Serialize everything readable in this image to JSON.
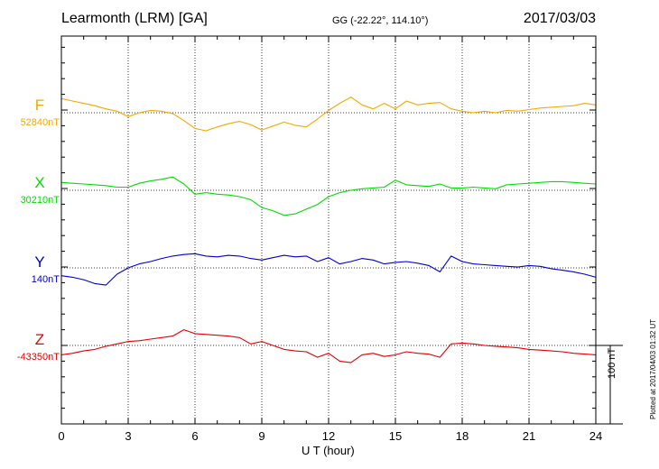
{
  "header": {
    "station": "Learmonth (LRM)  [GA]",
    "coords": "GG (-22.22°, 114.10°)",
    "date": "2017/03/03"
  },
  "footer": {
    "plotted": "Plotted at 2017/04/03 01:32 UT"
  },
  "scale": {
    "label": "100 nT",
    "value_nT": 100
  },
  "colors": {
    "F": "#f5a800",
    "X": "#00dd00",
    "Y": "#0000cc",
    "Z": "#e00000"
  },
  "chart_data": {
    "type": "line",
    "title": "",
    "xlabel": "U T (hour)",
    "xlim": [
      0,
      24
    ],
    "x_ticks": [
      "0",
      "3",
      "6",
      "9",
      "12",
      "15",
      "18",
      "21",
      "24"
    ],
    "x_minor_step": 1,
    "ylabel": "",
    "grid": true,
    "units": "nT",
    "series": [
      {
        "name": "F",
        "baseline": "52840nT",
        "x": [
          0,
          0.5,
          1,
          1.5,
          2,
          2.5,
          3,
          3.5,
          4,
          4.5,
          5,
          5.5,
          6,
          6.5,
          7,
          7.5,
          8,
          8.5,
          9,
          9.5,
          10,
          10.5,
          11,
          11.5,
          12,
          12.5,
          13,
          13.5,
          14,
          14.5,
          15,
          15.5,
          16,
          16.5,
          17,
          17.5,
          18,
          18.5,
          19,
          19.5,
          20,
          20.5,
          21,
          21.5,
          22,
          22.5,
          23,
          23.5,
          24
        ],
        "values": [
          18,
          15,
          12,
          9,
          5,
          2,
          -5,
          0,
          3,
          2,
          -1,
          -10,
          -20,
          -23,
          -18,
          -14,
          -11,
          -15,
          -22,
          -17,
          -12,
          -16,
          -18,
          -8,
          3,
          12,
          20,
          10,
          5,
          12,
          5,
          15,
          10,
          12,
          13,
          5,
          2,
          0,
          2,
          0,
          3,
          2,
          4,
          6,
          7,
          8,
          9,
          12,
          10
        ]
      },
      {
        "name": "X",
        "baseline": "30210nT",
        "x": [
          0,
          0.5,
          1,
          1.5,
          2,
          2.5,
          3,
          3.5,
          4,
          4.5,
          5,
          5.5,
          6,
          6.5,
          7,
          7.5,
          8,
          8.5,
          9,
          9.5,
          10,
          10.5,
          11,
          11.5,
          12,
          12.5,
          13,
          13.5,
          14,
          14.5,
          15,
          15.5,
          16,
          16.5,
          17,
          17.5,
          18,
          18.5,
          19,
          19.5,
          20,
          20.5,
          21,
          21.5,
          22,
          22.5,
          23,
          23.5,
          24
        ],
        "values": [
          10,
          9,
          8,
          7,
          6,
          4,
          4,
          9,
          12,
          14,
          17,
          8,
          -5,
          -3,
          -5,
          -6,
          -8,
          -12,
          -22,
          -26,
          -32,
          -30,
          -24,
          -18,
          -8,
          -3,
          0,
          2,
          3,
          4,
          13,
          7,
          6,
          5,
          8,
          3,
          3,
          4,
          3,
          2,
          7,
          8,
          9,
          10,
          11,
          11,
          10,
          9,
          8
        ]
      },
      {
        "name": "Y",
        "baseline": "140nT",
        "x": [
          0,
          0.5,
          1,
          1.5,
          2,
          2.5,
          3,
          3.5,
          4,
          4.5,
          5,
          5.5,
          6,
          6.5,
          7,
          7.5,
          8,
          8.5,
          9,
          9.5,
          10,
          10.5,
          11,
          11.5,
          12,
          12.5,
          13,
          13.5,
          14,
          14.5,
          15,
          15.5,
          16,
          16.5,
          17,
          17.5,
          18,
          18.5,
          19,
          19.5,
          20,
          20.5,
          21,
          21.5,
          22,
          22.5,
          23,
          23.5,
          24
        ],
        "values": [
          -10,
          -12,
          -15,
          -20,
          -22,
          -8,
          0,
          5,
          8,
          12,
          15,
          17,
          18,
          15,
          14,
          16,
          15,
          12,
          10,
          13,
          16,
          14,
          15,
          8,
          13,
          5,
          8,
          12,
          10,
          5,
          7,
          8,
          6,
          3,
          -5,
          15,
          8,
          5,
          4,
          3,
          2,
          1,
          3,
          2,
          -1,
          -3,
          -5,
          -8,
          -12
        ]
      },
      {
        "name": "Z",
        "baseline": "-43350nT",
        "x": [
          0,
          0.5,
          1,
          1.5,
          2,
          2.5,
          3,
          3.5,
          4,
          4.5,
          5,
          5.5,
          6,
          6.5,
          7,
          7.5,
          8,
          8.5,
          9,
          9.5,
          10,
          10.5,
          11,
          11.5,
          12,
          12.5,
          13,
          13.5,
          14,
          14.5,
          15,
          15.5,
          16,
          16.5,
          17,
          17.5,
          18,
          18.5,
          19,
          19.5,
          20,
          20.5,
          21,
          21.5,
          22,
          22.5,
          23,
          23.5,
          24
        ],
        "values": [
          -12,
          -10,
          -7,
          -5,
          -1,
          2,
          5,
          6,
          8,
          10,
          12,
          20,
          15,
          14,
          13,
          12,
          10,
          2,
          5,
          0,
          -5,
          -7,
          -8,
          -15,
          -10,
          -20,
          -22,
          -12,
          -10,
          -14,
          -12,
          -8,
          -10,
          -11,
          -15,
          2,
          3,
          2,
          0,
          -1,
          -2,
          -3,
          -5,
          -6,
          -7,
          -8,
          -10,
          -11,
          -12
        ]
      }
    ]
  }
}
